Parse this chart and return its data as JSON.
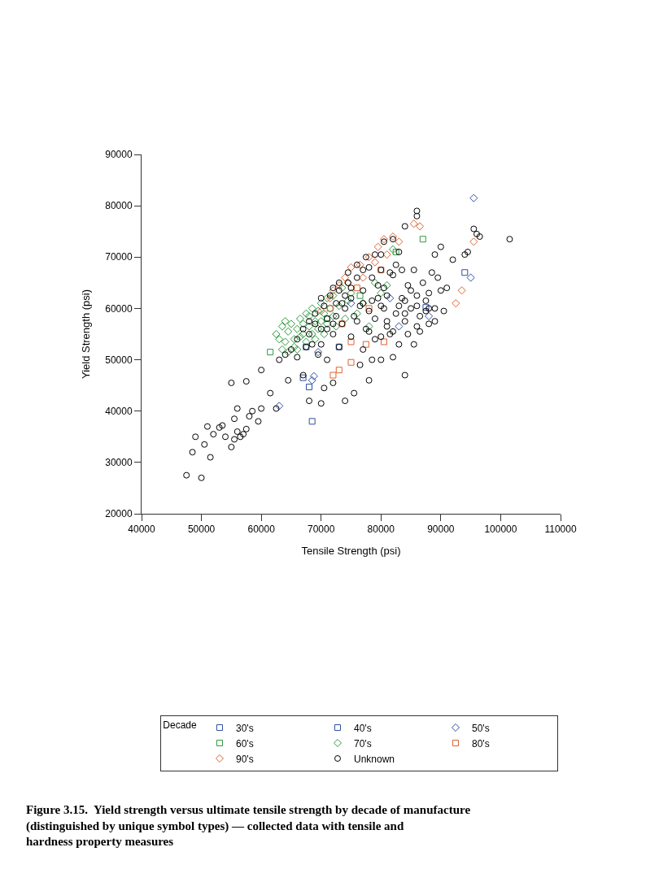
{
  "chart_data": {
    "type": "scatter",
    "xlabel": "Tensile Strength (psi)",
    "ylabel": "Yield Strength (psi)",
    "legend_title": "Decade",
    "xlim": [
      40000,
      110000
    ],
    "ylim": [
      20000,
      90000
    ],
    "xticks": [
      40000,
      50000,
      60000,
      70000,
      80000,
      90000,
      100000,
      110000
    ],
    "yticks": [
      20000,
      30000,
      40000,
      50000,
      60000,
      70000,
      80000,
      90000
    ],
    "legend": "bottom",
    "series": [
      {
        "name": "30's",
        "color": "#2f4fa0",
        "marker": "square",
        "x": [
          67000,
          68000,
          68500
        ],
        "values": [
          46500,
          44700,
          38000
        ]
      },
      {
        "name": "40's",
        "color": "#2f4fa0",
        "marker": "square",
        "x": [
          87500,
          94000,
          73000,
          67500
        ],
        "values": [
          60200,
          67000,
          52500,
          52500
        ]
      },
      {
        "name": "50's",
        "color": "#2f4fa0",
        "marker": "diamond",
        "x": [
          95500,
          95000,
          63000,
          68500,
          68800,
          88000,
          81500,
          69500,
          83000,
          75000
        ],
        "values": [
          81500,
          66000,
          41000,
          46000,
          46800,
          58500,
          62000,
          51500,
          56500,
          61000
        ]
      },
      {
        "name": "60's",
        "color": "#2e9a3e",
        "marker": "square",
        "x": [
          61500,
          87000,
          82500,
          76500,
          71000
        ],
        "values": [
          51500,
          73500,
          71000,
          62500,
          58000
        ]
      },
      {
        "name": "70's",
        "color": "#2e9a3e",
        "marker": "diamond",
        "x": [
          62500,
          63000,
          63500,
          64000,
          64000,
          64500,
          65000,
          65500,
          65500,
          66000,
          66500,
          66500,
          67000,
          67000,
          67500,
          67500,
          68000,
          68000,
          68500,
          68500,
          69000,
          69000,
          69500,
          69500,
          70000,
          70000,
          70500,
          70500,
          71000,
          71000,
          71500,
          72000,
          72000,
          72500,
          73000,
          73500,
          74000,
          74500,
          75000,
          76000,
          77000,
          79000,
          80000,
          81000,
          82000,
          78000,
          66000,
          63500,
          64500
        ],
        "values": [
          55000,
          54000,
          56500,
          57500,
          53500,
          55500,
          57000,
          54000,
          52500,
          56000,
          58000,
          54500,
          57000,
          55000,
          59000,
          53500,
          56500,
          58500,
          55000,
          60000,
          57500,
          54000,
          59500,
          56000,
          61000,
          57500,
          55000,
          59000,
          62000,
          57000,
          60000,
          58500,
          62500,
          56500,
          60500,
          64000,
          58000,
          61500,
          63000,
          59000,
          61000,
          65000,
          63000,
          64500,
          71500,
          56500,
          52000,
          52000,
          51500
        ]
      },
      {
        "name": "80's",
        "color": "#e0622e",
        "marker": "square",
        "x": [
          72000,
          73000,
          75000,
          75000,
          77500,
          80500,
          80000,
          71500,
          73500,
          76000,
          78000
        ],
        "values": [
          47000,
          48000,
          49500,
          53500,
          53000,
          53500,
          67500,
          60000,
          57000,
          64000,
          60000
        ]
      },
      {
        "name": "90's",
        "color": "#e0622e",
        "marker": "diamond",
        "x": [
          70000,
          71500,
          73000,
          74000,
          75000,
          76500,
          78000,
          79500,
          80500,
          82000,
          83000,
          85500,
          86500,
          92500,
          93500,
          95500,
          72000,
          74500,
          77000,
          79000,
          81000
        ],
        "values": [
          59500,
          62000,
          64500,
          66000,
          68000,
          68500,
          70000,
          72000,
          73500,
          74000,
          73000,
          76500,
          76000,
          61000,
          63500,
          73000,
          63500,
          65000,
          66000,
          69000,
          70500
        ]
      },
      {
        "name": "Unknown",
        "color": "#000000",
        "marker": "circle",
        "x": [
          47500,
          50000,
          48500,
          49000,
          50500,
          51500,
          52000,
          51000,
          53000,
          53500,
          54000,
          55000,
          55500,
          56000,
          55500,
          56500,
          57000,
          57500,
          58000,
          58500,
          56000,
          59500,
          60000,
          55000,
          57500,
          60000,
          61500,
          62500,
          63000,
          64000,
          65000,
          64500,
          66000,
          67000,
          68000,
          70000,
          70500,
          72000,
          74000,
          75500,
          78000,
          80000,
          84000,
          85500,
          86500,
          88000,
          89000,
          66000,
          67000,
          68000,
          68500,
          69000,
          70000,
          70500,
          71000,
          71500,
          72000,
          72500,
          73000,
          73500,
          74000,
          74500,
          75000,
          75500,
          76000,
          76500,
          77000,
          77500,
          78000,
          78500,
          79000,
          79500,
          80000,
          80500,
          81000,
          81500,
          82000,
          82500,
          83000,
          83500,
          84000,
          84500,
          85000,
          85500,
          86000,
          86500,
          87000,
          87500,
          88000,
          88500,
          89000,
          89500,
          90000,
          90500,
          91000,
          92000,
          86000,
          86000,
          84000,
          82000,
          80500,
          79000,
          77500,
          76000,
          74500,
          73000,
          72000,
          70000,
          68000,
          67500,
          69500,
          71000,
          73000,
          75000,
          77000,
          79000,
          81000,
          83000,
          84500,
          86000,
          82000,
          78500,
          76500,
          94500,
          95500,
          96000,
          94000,
          96500,
          101500,
          89000,
          90000,
          87500,
          81000,
          80000,
          80500,
          79500,
          78000,
          77000,
          83000,
          84000,
          85000,
          81500,
          82500,
          83500,
          80000,
          78500,
          77000,
          75000,
          73500,
          72500,
          71000,
          69000,
          70000,
          72000,
          74000,
          76000,
          78000,
          80000,
          82000,
          84000,
          86000,
          88000
        ],
        "values": [
          27500,
          27000,
          32000,
          35000,
          33500,
          31000,
          35500,
          37000,
          36800,
          37200,
          35000,
          33000,
          34500,
          36000,
          38500,
          35000,
          35500,
          36500,
          39000,
          40000,
          40500,
          38000,
          40500,
          45500,
          45800,
          48000,
          43500,
          40500,
          50000,
          51000,
          52000,
          46000,
          50500,
          47000,
          42000,
          41500,
          44500,
          45500,
          42000,
          43500,
          46000,
          50000,
          47000,
          53000,
          55500,
          57000,
          57500,
          54000,
          56000,
          57500,
          53000,
          59000,
          56000,
          60500,
          58000,
          62500,
          55000,
          61000,
          63500,
          57000,
          60000,
          65000,
          62000,
          58500,
          66000,
          60500,
          63500,
          56000,
          68000,
          61500,
          58000,
          64500,
          70500,
          60000,
          62500,
          55000,
          66500,
          59000,
          71000,
          62000,
          57500,
          64500,
          60000,
          67500,
          62500,
          58500,
          65000,
          61500,
          63000,
          67000,
          60000,
          66000,
          63500,
          59500,
          64000,
          69500,
          78000,
          79000,
          76000,
          73500,
          73000,
          70500,
          70000,
          68500,
          67000,
          65000,
          57000,
          53000,
          55000,
          52500,
          51000,
          50000,
          52500,
          54500,
          52000,
          54000,
          56500,
          53000,
          55000,
          56500,
          50500,
          50000,
          49000,
          71000,
          75500,
          74500,
          70500,
          74000,
          73500,
          70500,
          72000,
          59500,
          57500,
          60500,
          64000,
          62000,
          59500,
          61000,
          60500,
          61500,
          63500,
          67000,
          68500,
          67500,
          67500,
          66000,
          67500,
          64000,
          61000,
          58500,
          56000,
          57000,
          62000,
          64000,
          62500,
          57500,
          55500,
          54500,
          55500,
          59000,
          60500,
          60000
        ]
      }
    ],
    "annotations": [
      "Figure 3.15.  Yield strength versus ultimate tensile strength by decade of manufacture\n(distinguished by unique symbol types) — collected data with tensile and\nhardness property measures"
    ]
  }
}
